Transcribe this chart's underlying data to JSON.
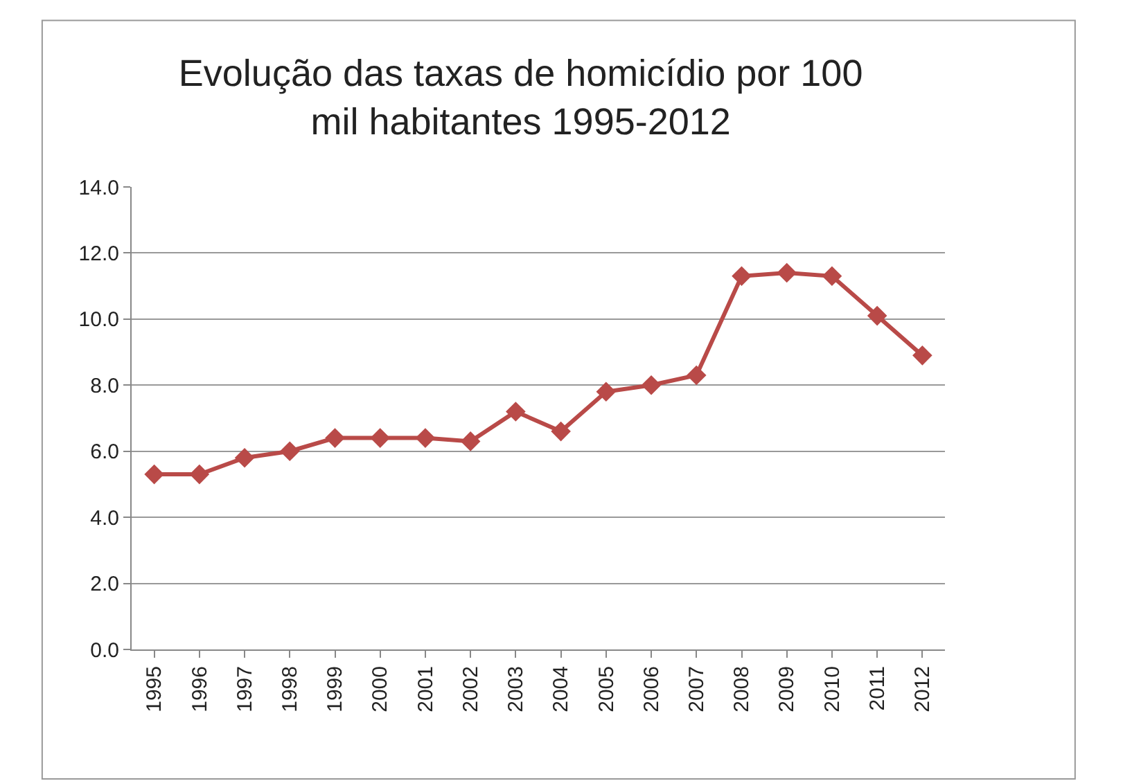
{
  "chart_data": {
    "type": "line",
    "title": "Evolução das taxas de homicídio por 100 mil habitantes 1995-2012",
    "categories": [
      "1995",
      "1996",
      "1997",
      "1998",
      "1999",
      "2000",
      "2001",
      "2002",
      "2003",
      "2004",
      "2005",
      "2006",
      "2007",
      "2008",
      "2009",
      "2010",
      "2011",
      "2012"
    ],
    "series": [
      {
        "color": "#b94a48",
        "values": [
          5.3,
          5.3,
          5.8,
          6.0,
          6.4,
          6.4,
          6.4,
          6.3,
          7.2,
          6.6,
          7.8,
          8.0,
          8.3,
          11.3,
          11.4,
          11.3,
          10.1,
          8.9
        ]
      }
    ],
    "ylim": [
      0,
      14
    ],
    "yticks": [
      {
        "value": 0,
        "label": "0.0"
      },
      {
        "value": 2,
        "label": "2.0"
      },
      {
        "value": 4,
        "label": "4.0"
      },
      {
        "value": 6,
        "label": "6.0"
      },
      {
        "value": 8,
        "label": "8.0"
      },
      {
        "value": 10,
        "label": "10.0"
      },
      {
        "value": 12,
        "label": "12.0"
      },
      {
        "value": 14,
        "label": "14.0"
      }
    ],
    "grid": "y",
    "legend": false,
    "marker": "diamond",
    "line_style": "solid"
  }
}
